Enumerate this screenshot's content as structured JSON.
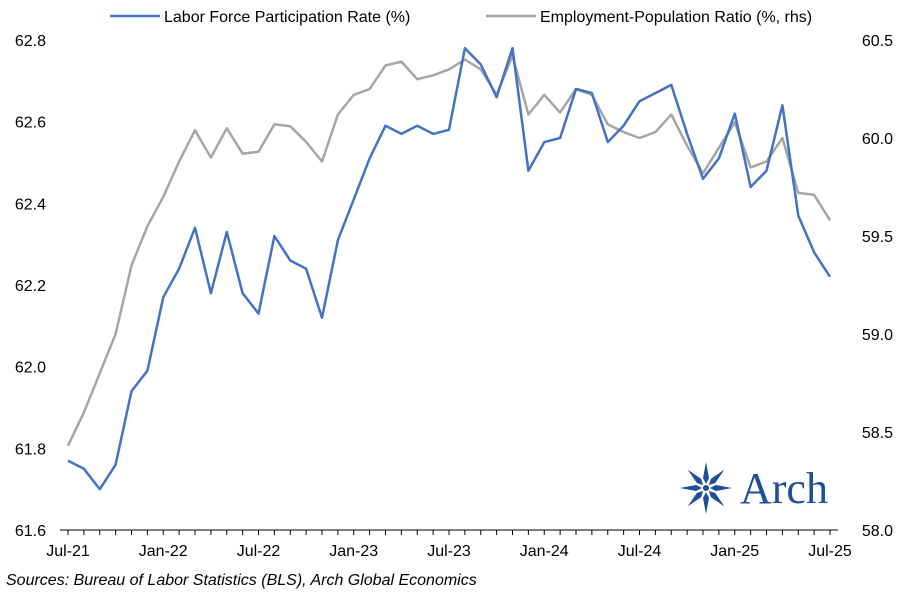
{
  "chart_data": {
    "type": "line",
    "x": [
      "Jul-21",
      "Aug-21",
      "Sep-21",
      "Oct-21",
      "Nov-21",
      "Dec-21",
      "Jan-22",
      "Feb-22",
      "Mar-22",
      "Apr-22",
      "May-22",
      "Jun-22",
      "Jul-22",
      "Aug-22",
      "Sep-22",
      "Oct-22",
      "Nov-22",
      "Dec-22",
      "Jan-23",
      "Feb-23",
      "Mar-23",
      "Apr-23",
      "May-23",
      "Jun-23",
      "Jul-23",
      "Aug-23",
      "Sep-23",
      "Oct-23",
      "Nov-23",
      "Dec-23",
      "Jan-24",
      "Feb-24",
      "Mar-24",
      "Apr-24",
      "May-24",
      "Jun-24",
      "Jul-24",
      "Aug-24",
      "Sep-24",
      "Oct-24",
      "Nov-24",
      "Dec-24",
      "Jan-25",
      "Feb-25",
      "Mar-25",
      "Apr-25",
      "May-25",
      "Jun-25",
      "Jul-25"
    ],
    "x_tick_labels": [
      "Jul-21",
      "Jan-22",
      "Jul-22",
      "Jan-23",
      "Jul-23",
      "Jan-24",
      "Jul-24",
      "Jan-25",
      "Jul-25"
    ],
    "series": [
      {
        "name": "Labor Force Participation Rate (%)",
        "axis": "left",
        "color": "#4472c4",
        "values": [
          61.77,
          61.75,
          61.7,
          61.76,
          61.94,
          61.99,
          62.17,
          62.24,
          62.34,
          62.18,
          62.33,
          62.18,
          62.13,
          62.32,
          62.26,
          62.24,
          62.12,
          62.31,
          62.41,
          62.51,
          62.59,
          62.57,
          62.59,
          62.57,
          62.58,
          62.78,
          62.74,
          62.66,
          62.78,
          62.48,
          62.55,
          62.56,
          62.68,
          62.67,
          62.55,
          62.59,
          62.65,
          62.67,
          62.69,
          62.57,
          62.46,
          62.51,
          62.62,
          62.44,
          62.48,
          62.64,
          62.37,
          62.28,
          62.22
        ]
      },
      {
        "name": "Employment-Population Ratio (%, rhs)",
        "axis": "right",
        "color": "#a6a6a6",
        "values": [
          58.43,
          58.6,
          58.8,
          59.0,
          59.35,
          59.55,
          59.7,
          59.88,
          60.04,
          59.9,
          60.05,
          59.92,
          59.93,
          60.07,
          60.06,
          59.98,
          59.88,
          60.12,
          60.22,
          60.25,
          60.37,
          60.39,
          60.3,
          60.32,
          60.35,
          60.4,
          60.35,
          60.22,
          60.42,
          60.12,
          60.22,
          60.13,
          60.25,
          60.22,
          60.07,
          60.03,
          60.0,
          60.03,
          60.12,
          59.96,
          59.82,
          59.95,
          60.08,
          59.85,
          59.88,
          60.0,
          59.72,
          59.71,
          59.58
        ]
      }
    ],
    "y_left": {
      "ylim": [
        61.6,
        62.8
      ],
      "ticks": [
        "61.6",
        "61.8",
        "62.0",
        "62.2",
        "62.4",
        "62.6",
        "62.8"
      ]
    },
    "y_right": {
      "ylim": [
        58.0,
        60.5
      ],
      "ticks": [
        "58.0",
        "58.5",
        "59.0",
        "59.5",
        "60.0",
        "60.5"
      ]
    },
    "legend_position": "top",
    "grid": false
  },
  "legend": {
    "lfpr": "Labor Force Participation Rate (%)",
    "epop": "Employment-Population Ratio (%, rhs)"
  },
  "source": "Sources: Bureau of Labor Statistics (BLS), Arch Global Economics",
  "logo": {
    "text": "Arch",
    "color": "#1f4e9a"
  }
}
